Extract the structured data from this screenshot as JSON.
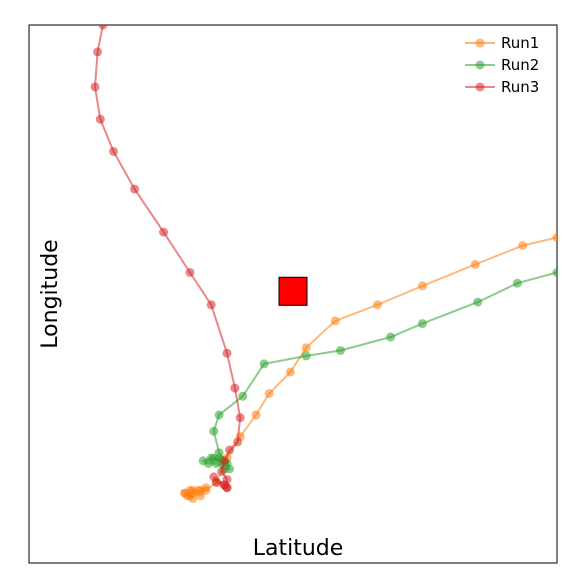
{
  "chart_data": {
    "type": "scatter",
    "title": "",
    "xlabel": "Latitude",
    "ylabel": "Longitude",
    "xlim": [
      0,
      100
    ],
    "ylim": [
      0,
      100
    ],
    "grid": false,
    "legend_position": "top-right",
    "marker": {
      "name": "red-square-marker",
      "color": "#ff0000",
      "x": 50,
      "y": 50.5
    },
    "series": [
      {
        "name": "Run1",
        "color": "#ff7f0e",
        "x": [
          100,
          93.5,
          84.5,
          74.5,
          66,
          58,
          52.5,
          49.5,
          45.5,
          43,
          40,
          37.5,
          35.5,
          33.5,
          32.5,
          30.5,
          29.5,
          30,
          31,
          30.5,
          29.5,
          31,
          32.5,
          33.5,
          32,
          31
        ],
        "y": [
          60.5,
          59,
          55.5,
          51.5,
          48,
          45,
          40,
          35.5,
          31.5,
          27.5,
          23.5,
          19.5,
          15,
          13.5,
          13.5,
          13.5,
          13,
          12.5,
          12,
          12.5,
          13,
          13,
          12.5,
          14,
          13.5,
          13.5
        ]
      },
      {
        "name": "Run2",
        "color": "#2ca02c",
        "x": [
          100,
          92.5,
          85,
          74.5,
          68.5,
          59,
          52.5,
          44.5,
          40.5,
          36,
          35,
          36,
          37.5,
          38,
          37,
          35.5,
          34,
          33,
          34.5,
          36.5,
          37,
          36,
          35
        ],
        "y": [
          54,
          52,
          48.5,
          44.5,
          42,
          39.5,
          38.5,
          37,
          31,
          27.5,
          24.5,
          20.5,
          18.5,
          17.5,
          17.5,
          18.5,
          18.5,
          19,
          19.5,
          19,
          18.5,
          19.5,
          19.5
        ]
      },
      {
        "name": "Run3",
        "color": "#d62728",
        "x": [
          14,
          13,
          12.5,
          13.5,
          16,
          20,
          25.5,
          30.5,
          34.5,
          37.5,
          39,
          40,
          39.5,
          38,
          37,
          36.5,
          37.5,
          37.5,
          37,
          35.5,
          35,
          37,
          37.5
        ],
        "y": [
          100,
          95,
          88.5,
          82.5,
          76.5,
          69.5,
          61.5,
          54,
          48,
          39,
          32.5,
          27,
          22.5,
          21,
          19,
          17,
          15.5,
          14,
          14.5,
          15,
          16,
          14.5,
          14
        ]
      }
    ]
  }
}
